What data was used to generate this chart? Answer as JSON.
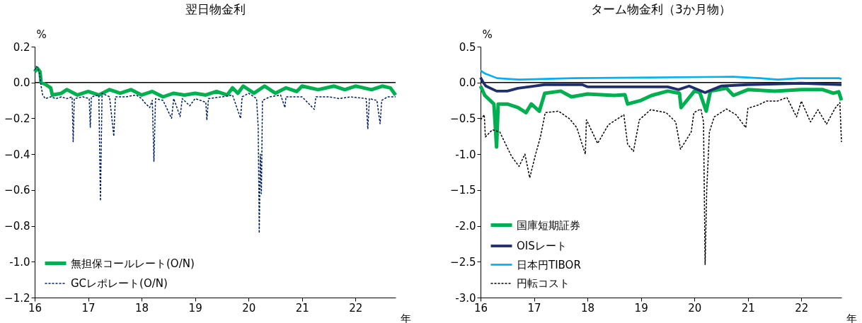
{
  "chart_data": [
    {
      "type": "line",
      "title": "翌日物金利",
      "ylabel": "%",
      "xlabel": "年",
      "xlim": [
        16,
        22.75
      ],
      "xticks": [
        16,
        17,
        18,
        19,
        20,
        21,
        22
      ],
      "ylim": [
        -1.2,
        0.2
      ],
      "yticks": [
        0.2,
        {
          "value": 0,
          "label": "0.0"
        },
        -0.2,
        -0.4,
        -0.6,
        -0.8,
        {
          "value": -1,
          "label": "-1.0"
        },
        -1.2
      ],
      "grid": false,
      "legend": "bottom left",
      "marker": "none",
      "ref_lines": [
        {
          "axis": "y",
          "value": 0,
          "color": "#000000"
        }
      ],
      "series": [
        {
          "name": "無担保コールレート(O/N)",
          "color": "#00b050",
          "line_style": "solid",
          "x": [
            16.0,
            16.05,
            16.1,
            16.12,
            16.2,
            16.3,
            16.33,
            16.5,
            16.6,
            16.8,
            17.0,
            17.2,
            17.4,
            17.6,
            17.8,
            18.0,
            18.2,
            18.4,
            18.6,
            18.8,
            19.0,
            19.2,
            19.4,
            19.6,
            19.7,
            19.8,
            19.9,
            20.1,
            20.3,
            20.5,
            20.7,
            20.9,
            21.0,
            21.3,
            21.6,
            21.8,
            22.0,
            22.3,
            22.5,
            22.65,
            22.75
          ],
          "values": [
            0.06,
            0.08,
            0.06,
            0.0,
            -0.01,
            -0.03,
            -0.07,
            -0.06,
            -0.04,
            -0.07,
            -0.05,
            -0.07,
            -0.04,
            -0.06,
            -0.04,
            -0.07,
            -0.05,
            -0.08,
            -0.06,
            -0.07,
            -0.06,
            -0.07,
            -0.05,
            -0.07,
            -0.03,
            -0.06,
            -0.02,
            -0.06,
            -0.02,
            -0.06,
            -0.03,
            -0.05,
            -0.02,
            -0.04,
            -0.02,
            -0.04,
            -0.02,
            -0.04,
            -0.02,
            -0.03,
            -0.07
          ]
        },
        {
          "name": "GCレポレート(O/N)",
          "color": "#002060",
          "line_style": "dashed",
          "x": [
            16.0,
            16.03,
            16.06,
            16.09,
            16.12,
            16.15,
            16.2,
            16.3,
            16.4,
            16.5,
            16.6,
            16.7,
            16.72,
            16.74,
            16.9,
            17.02,
            17.04,
            17.06,
            17.2,
            17.23,
            17.26,
            17.4,
            17.48,
            17.51,
            17.7,
            17.9,
            18.0,
            18.05,
            18.15,
            18.2,
            18.23,
            18.26,
            18.4,
            18.56,
            18.6,
            18.72,
            18.76,
            18.9,
            19.0,
            19.2,
            19.22,
            19.25,
            19.5,
            19.7,
            19.85,
            19.88,
            20.0,
            20.15,
            20.18,
            20.2,
            20.22,
            20.24,
            20.26,
            20.4,
            20.6,
            20.68,
            20.7,
            21.0,
            21.23,
            21.26,
            21.5,
            21.7,
            21.9,
            22.2,
            22.23,
            22.26,
            22.4,
            22.46,
            22.49,
            22.6,
            22.75
          ],
          "values": [
            0.07,
            0.09,
            0.08,
            0.05,
            -0.02,
            -0.07,
            -0.09,
            -0.08,
            -0.09,
            -0.08,
            -0.09,
            -0.08,
            -0.33,
            -0.09,
            -0.08,
            -0.09,
            -0.25,
            -0.08,
            -0.07,
            -0.66,
            -0.06,
            -0.08,
            -0.3,
            -0.08,
            -0.08,
            -0.07,
            -0.09,
            -0.11,
            -0.14,
            -0.1,
            -0.44,
            -0.09,
            -0.1,
            -0.2,
            -0.09,
            -0.19,
            -0.09,
            -0.13,
            -0.09,
            -0.11,
            -0.21,
            -0.09,
            -0.08,
            -0.07,
            -0.2,
            -0.08,
            -0.06,
            -0.09,
            -0.25,
            -0.84,
            -0.4,
            -0.62,
            -0.1,
            -0.08,
            -0.07,
            -0.14,
            -0.08,
            -0.08,
            -0.15,
            -0.08,
            -0.08,
            -0.09,
            -0.08,
            -0.09,
            -0.26,
            -0.09,
            -0.1,
            -0.23,
            -0.1,
            -0.08,
            -0.08
          ]
        }
      ]
    },
    {
      "type": "line",
      "title": "ターム物金利（3か月物）",
      "ylabel": "%",
      "xlabel": "年",
      "xlim": [
        16,
        22.75
      ],
      "xticks": [
        16,
        17,
        18,
        19,
        20,
        21,
        22
      ],
      "ylim": [
        -3,
        0.5
      ],
      "yticks": [
        0.5,
        {
          "value": 0,
          "label": "0.0"
        },
        -0.5,
        {
          "value": -1,
          "label": "-1.0"
        },
        -1.5,
        {
          "value": -2,
          "label": "-2.0"
        },
        -2.5,
        {
          "value": -3,
          "label": "-3.0"
        }
      ],
      "grid": false,
      "legend": "bottom left",
      "marker": "none",
      "ref_lines": [
        {
          "axis": "y",
          "value": 0,
          "color": "#000000"
        }
      ],
      "series": [
        {
          "name": "国庫短期証券",
          "color": "#00b050",
          "line_style": "solid",
          "x": [
            16.0,
            16.08,
            16.25,
            16.3,
            16.33,
            16.5,
            16.7,
            16.85,
            16.95,
            17.1,
            17.2,
            17.5,
            17.7,
            18.0,
            18.5,
            18.7,
            18.75,
            19.0,
            19.2,
            19.5,
            19.72,
            19.75,
            20.0,
            20.1,
            20.22,
            20.3,
            20.6,
            20.73,
            21.0,
            21.5,
            22.0,
            22.4,
            22.6,
            22.7,
            22.75
          ],
          "values": [
            -0.05,
            -0.18,
            -0.3,
            -0.9,
            -0.3,
            -0.3,
            -0.35,
            -0.42,
            -0.3,
            -0.4,
            -0.15,
            -0.12,
            -0.2,
            -0.16,
            -0.18,
            -0.17,
            -0.3,
            -0.25,
            -0.18,
            -0.12,
            -0.15,
            -0.35,
            -0.12,
            -0.14,
            -0.4,
            -0.12,
            -0.08,
            -0.18,
            -0.1,
            -0.12,
            -0.1,
            -0.1,
            -0.15,
            -0.13,
            -0.25
          ]
        },
        {
          "name": "OISレート",
          "color": "#1f2f6e",
          "line_style": "solid",
          "x": [
            16.0,
            16.05,
            16.1,
            16.3,
            16.5,
            16.7,
            17.0,
            17.2,
            17.9,
            18.0,
            19.5,
            19.7,
            19.9,
            20.2,
            20.5,
            21.0,
            21.5,
            22.0,
            22.75
          ],
          "values": [
            0.07,
            0.0,
            -0.05,
            -0.12,
            -0.12,
            -0.08,
            -0.05,
            -0.03,
            -0.03,
            -0.06,
            -0.06,
            -0.1,
            -0.05,
            -0.14,
            -0.05,
            -0.03,
            -0.02,
            -0.01,
            -0.03
          ]
        },
        {
          "name": "日本円TIBOR",
          "color": "#00b0f0",
          "line_style": "solid",
          "x": [
            16.0,
            16.05,
            16.1,
            16.31,
            16.72,
            17.73,
            20.73,
            21.23,
            21.56,
            21.97,
            22.7,
            22.75
          ],
          "values": [
            0.17,
            0.14,
            0.12,
            0.06,
            0.04,
            0.06,
            0.08,
            0.06,
            0.04,
            0.06,
            0.06,
            0.05
          ]
        },
        {
          "name": "円転コスト",
          "color": "#000000",
          "line_style": "dashed",
          "x": [
            16.0,
            16.07,
            16.09,
            16.22,
            16.36,
            16.45,
            16.58,
            16.72,
            16.83,
            16.92,
            17.03,
            17.12,
            17.21,
            17.46,
            17.67,
            17.8,
            17.96,
            17.98,
            18.19,
            18.39,
            18.68,
            18.75,
            18.86,
            18.97,
            19.18,
            19.47,
            19.65,
            19.74,
            19.94,
            19.99,
            20.12,
            20.17,
            20.2,
            20.23,
            20.28,
            20.37,
            20.6,
            20.78,
            20.96,
            21.0,
            21.21,
            21.34,
            21.55,
            21.73,
            21.91,
            22.0,
            22.17,
            22.31,
            22.47,
            22.63,
            22.72,
            22.75
          ],
          "values": [
            -0.52,
            -0.45,
            -0.76,
            -0.66,
            -0.69,
            -0.83,
            -1.03,
            -1.17,
            -1.0,
            -1.33,
            -1.0,
            -0.76,
            -0.42,
            -0.4,
            -0.51,
            -0.63,
            -1.0,
            -0.52,
            -0.85,
            -0.59,
            -0.45,
            -0.86,
            -0.96,
            -0.52,
            -0.38,
            -0.42,
            -0.55,
            -0.93,
            -0.69,
            -0.42,
            -0.37,
            -0.55,
            -2.54,
            -1.5,
            -0.69,
            -0.48,
            -0.37,
            -0.45,
            -0.63,
            -0.36,
            -0.31,
            -0.26,
            -0.26,
            -0.21,
            -0.48,
            -0.26,
            -0.55,
            -0.38,
            -0.58,
            -0.36,
            -0.28,
            -0.83
          ]
        }
      ]
    }
  ]
}
